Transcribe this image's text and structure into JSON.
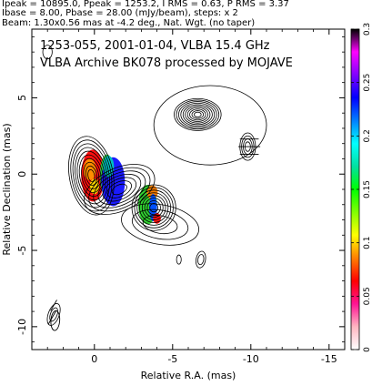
{
  "header": {
    "line1": "Ipeak = 10895.0, Ppeak = 1253.2, I RMS = 0.63, P RMS = 3.37",
    "line2": "Ibase = 8.00, Pbase = 28.00 (mJy/beam), steps: x 2",
    "line3": "Beam: 1.30x0.56 mas at -4.2 deg., Nat. Wgt. (no taper)"
  },
  "chart_data": {
    "type": "heatmap",
    "title": "1253-055, 2001-01-04, VLBA 15.4 GHz",
    "subtitle": "VLBA Archive BK078 processed by MOJAVE",
    "xlabel": "Relative R.A. (mas)",
    "ylabel": "Relative Declination (mas)",
    "xlim": [
      4,
      -16
    ],
    "ylim": [
      -11.5,
      9.5
    ],
    "x_ticks": [
      0,
      -5,
      -10,
      -15
    ],
    "y_ticks": [
      5,
      0,
      -5,
      -10
    ],
    "colorbar": {
      "range": [
        0,
        0.3
      ],
      "ticks": [
        0,
        0.05,
        0.1,
        0.15,
        0.2,
        0.25,
        0.3
      ],
      "tick_labels": [
        "0",
        "0.05",
        "0.1",
        "0.15",
        "0.2",
        "0.25",
        "0.3"
      ],
      "stops": [
        "#ffffff",
        "#ffb6c1",
        "#ff1493",
        "#ff0000",
        "#ff8000",
        "#ffff00",
        "#80ff00",
        "#00ff00",
        "#00e0a0",
        "#00ffff",
        "#0080ff",
        "#0000ff",
        "#8000ff",
        "#ff00ff",
        "#000000"
      ]
    },
    "components": [
      {
        "id": "core",
        "x": 0.2,
        "y": -0.1,
        "rx": 1.4,
        "ry": 2.6,
        "pa": -10,
        "levels": 10
      },
      {
        "id": "inner-jet",
        "x": -1.6,
        "y": -1.0,
        "rx": 2.4,
        "ry": 1.4,
        "pa": -25,
        "levels": 7
      },
      {
        "id": "knot",
        "x": -3.8,
        "y": -2.2,
        "rx": 1.4,
        "ry": 1.5,
        "pa": 0,
        "levels": 8
      },
      {
        "id": "plume",
        "x": -4.2,
        "y": -3.3,
        "rx": 2.5,
        "ry": 1.3,
        "pa": 10,
        "levels": 3
      },
      {
        "id": "ne-lobe",
        "x": -6.6,
        "y": 3.9,
        "rx": 1.5,
        "ry": 1.05,
        "pa": 0,
        "levels": 10
      },
      {
        "id": "ne-envelope",
        "x": -7.4,
        "y": 3.2,
        "rx": 3.6,
        "ry": 2.6,
        "pa": 0,
        "levels": 1
      },
      {
        "id": "far-knot",
        "x": -9.8,
        "y": 1.8,
        "rx": 0.5,
        "ry": 0.9,
        "pa": 0,
        "levels": 4
      },
      {
        "id": "sw-blob",
        "x": 2.6,
        "y": -9.2,
        "rx": 0.35,
        "ry": 0.75,
        "pa": 20,
        "levels": 2
      },
      {
        "id": "s-blob-1",
        "x": -5.4,
        "y": -5.6,
        "rx": 0.15,
        "ry": 0.3,
        "pa": 0,
        "levels": 1
      },
      {
        "id": "s-blob-2",
        "x": -6.8,
        "y": -5.6,
        "rx": 0.3,
        "ry": 0.55,
        "pa": 10,
        "levels": 2
      },
      {
        "id": "n-blob",
        "x": 3.0,
        "y": 8.0,
        "rx": 0.3,
        "ry": 0.45,
        "pa": 0,
        "levels": 1
      }
    ],
    "polarization_patches": [
      {
        "x": 0.1,
        "y": -0.1,
        "rx": 0.75,
        "ry": 1.7,
        "color": "#ff1010"
      },
      {
        "x": 0.3,
        "y": 0.3,
        "rx": 0.4,
        "ry": 0.7,
        "color": "#ff8c00"
      },
      {
        "x": 0.0,
        "y": -0.8,
        "rx": 0.3,
        "ry": 0.5,
        "color": "#ffd700"
      },
      {
        "x": -0.8,
        "y": -0.1,
        "rx": 0.45,
        "ry": 1.4,
        "color": "#2ec040"
      },
      {
        "x": -1.2,
        "y": -0.5,
        "rx": 0.75,
        "ry": 1.6,
        "color": "#1a1aff"
      },
      {
        "x": -0.9,
        "y": 0.5,
        "rx": 0.35,
        "ry": 0.7,
        "color": "#00c0c0"
      },
      {
        "x": -3.4,
        "y": -2.0,
        "rx": 0.6,
        "ry": 1.3,
        "color": "#30d030"
      },
      {
        "x": -3.7,
        "y": -1.2,
        "rx": 0.35,
        "ry": 0.45,
        "color": "#ff8000"
      },
      {
        "x": -3.75,
        "y": -2.2,
        "rx": 0.25,
        "ry": 0.9,
        "color": "#0050ff"
      },
      {
        "x": -4.0,
        "y": -2.9,
        "rx": 0.25,
        "ry": 0.35,
        "color": "#ff1010"
      }
    ],
    "evpa_ticks": [
      {
        "x": -9.9,
        "y": 1.8,
        "angle": 0,
        "length": 1.4
      },
      {
        "x": -9.9,
        "y": 2.3,
        "angle": 0,
        "length": 1.2
      },
      {
        "x": -9.9,
        "y": 1.3,
        "angle": 0,
        "length": 1.2
      },
      {
        "x": 2.7,
        "y": -9.4,
        "angle": 60,
        "length": 1.0
      },
      {
        "x": 2.6,
        "y": -8.6,
        "angle": 60,
        "length": 0.8
      }
    ],
    "beam": {
      "x": 2.5,
      "y": -9.6,
      "major": 1.3,
      "minor": 0.56,
      "pa": -4.2
    }
  }
}
